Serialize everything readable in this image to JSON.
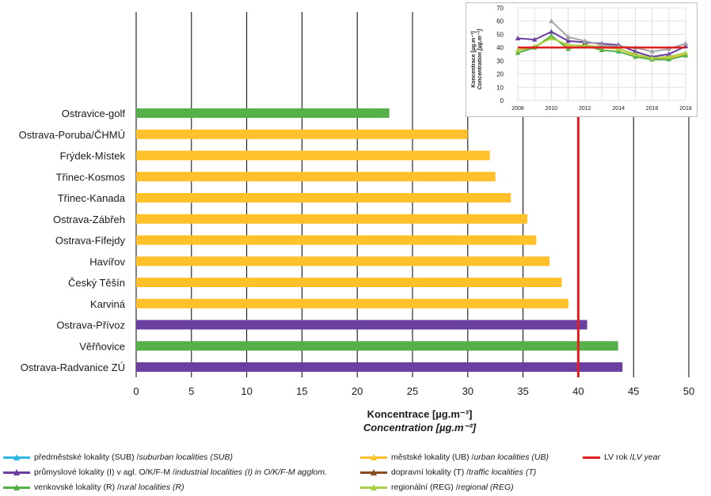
{
  "chart_data": [
    {
      "type": "bar",
      "orientation": "horizontal",
      "categories": [
        "Ostravice-golf",
        "Ostrava-Poruba/ČHMÚ",
        "Frýdek-Místek",
        "Třinec-Kosmos",
        "Třinec-Kanada",
        "Ostrava-Zábřeh",
        "Ostrava-Fifejdy",
        "Havířov",
        "Český Těšín",
        "Karviná",
        "Ostrava-Přívoz",
        "Věřňovice",
        "Ostrava-Radvanice ZÚ"
      ],
      "values": [
        22.9,
        30.0,
        32.0,
        32.5,
        33.9,
        35.4,
        36.2,
        37.4,
        38.5,
        39.1,
        40.8,
        43.6,
        44.0
      ],
      "bar_types": [
        "R",
        "UB",
        "UB",
        "UB",
        "UB",
        "UB",
        "UB",
        "UB",
        "UB",
        "UB",
        "I",
        "R",
        "I"
      ],
      "xlabel": "Koncentrace [µg.m⁻³]",
      "xlabel_en": "Concentration [µg.m⁻³]",
      "xlim": [
        0,
        50
      ],
      "xticks": [
        0,
        5,
        10,
        15,
        20,
        25,
        30,
        35,
        40,
        45,
        50
      ],
      "limit_value": 40,
      "grid": true
    },
    {
      "type": "line",
      "x": [
        2008,
        2009,
        2010,
        2011,
        2012,
        2013,
        2014,
        2015,
        2016,
        2017,
        2018
      ],
      "xticks": [
        2008,
        2010,
        2012,
        2014,
        2016,
        2018
      ],
      "ylim": [
        0,
        70
      ],
      "yticks": [
        0,
        10,
        20,
        30,
        40,
        50,
        60,
        70
      ],
      "ylabel": "Koncentrace [µg.m⁻³]",
      "ylabel_en": "Concentration [µg.m⁻³]",
      "series": [
        {
          "type": "I",
          "values": [
            47,
            46,
            52,
            45,
            44,
            43,
            42,
            37,
            33,
            35,
            41
          ]
        },
        {
          "type": "UB",
          "values": [
            38,
            40,
            48,
            41,
            42,
            40,
            39,
            34,
            31,
            32,
            35
          ]
        },
        {
          "type": "R",
          "values": [
            36,
            40,
            49,
            39,
            42,
            38,
            37,
            33,
            31,
            31,
            34
          ]
        },
        {
          "type": "REG",
          "values": [
            38,
            41,
            47,
            42,
            41,
            41,
            39,
            35,
            32,
            33,
            36
          ]
        },
        {
          "type": "X",
          "values": [
            null,
            null,
            60,
            48,
            45,
            42,
            41,
            40,
            37,
            39,
            43
          ]
        },
        {
          "type": "LV",
          "values": [
            40,
            40,
            40,
            40,
            40,
            40,
            40,
            40,
            40,
            40,
            40
          ]
        }
      ],
      "grid": true
    }
  ],
  "colors": {
    "SUB": "#2eb6e6",
    "UB": "#ffc12b",
    "I": "#6a3fa0",
    "T": "#8a4a22",
    "R": "#55b04a",
    "REG": "#a8cf45",
    "X": "#a3a3a3",
    "LV": "#e02020"
  },
  "legend": [
    {
      "key": "SUB",
      "label": "předměstské lokality (SUB) / ",
      "label_en": "suburban localities (SUB)"
    },
    {
      "key": "UB",
      "label": "městské lokality (UB) / ",
      "label_en": "urban localities (UB)"
    },
    {
      "key": "LV",
      "label": "LV rok / ",
      "label_en": "LV year"
    },
    {
      "key": "I",
      "label": "průmyslové lokality (I) v agl. O/K/F-M / ",
      "label_en": "industrial localities (I) in O/K/F-M agglom."
    },
    {
      "key": "T",
      "label": "dopravní lokality (T) / ",
      "label_en": "traffic localities (T)"
    },
    {
      "key": "R",
      "label": "venkovské lokality (R) / ",
      "label_en": "rural localities (R)"
    },
    {
      "key": "REG",
      "label": "regionální (REG) / ",
      "label_en": "regional (REG)"
    }
  ]
}
